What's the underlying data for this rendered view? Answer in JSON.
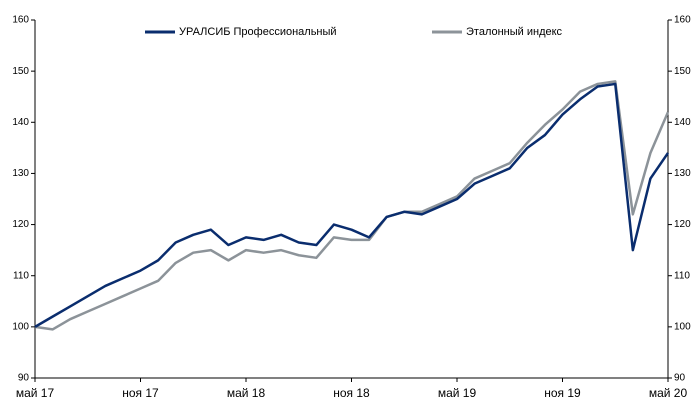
{
  "chart_data": {
    "type": "line",
    "categories": [
      "май 17",
      null,
      null,
      null,
      null,
      null,
      "ноя 17",
      null,
      null,
      null,
      null,
      null,
      "май 18",
      null,
      null,
      null,
      null,
      null,
      "ноя 18",
      null,
      null,
      null,
      null,
      null,
      "май 19",
      null,
      null,
      null,
      null,
      null,
      "ноя 19",
      null,
      null,
      null,
      null,
      null,
      "май 20"
    ],
    "series": [
      {
        "name": "УРАЛСИБ Профессиональный",
        "color": "#0a2d6e",
        "values": [
          100,
          102,
          104,
          106,
          108,
          109.5,
          111,
          113,
          116.5,
          118,
          119,
          116,
          117.5,
          117,
          118,
          116.5,
          116,
          120,
          119,
          117.5,
          121.5,
          122.5,
          122,
          123.5,
          125,
          128,
          129.5,
          131,
          135,
          137.5,
          141.5,
          144.5,
          147,
          147.5,
          115,
          129,
          134
        ]
      },
      {
        "name": "Эталонный индекс",
        "color": "#8c9399",
        "values": [
          100,
          99.5,
          101.5,
          103,
          104.5,
          106,
          107.5,
          109,
          112.5,
          114.5,
          115,
          113,
          115,
          114.5,
          115,
          114,
          113.5,
          117.5,
          117,
          117,
          121.5,
          122.5,
          122.5,
          124,
          125.5,
          129,
          130.5,
          132,
          136,
          139.5,
          142.5,
          146,
          147.5,
          148,
          122,
          134,
          142
        ]
      }
    ],
    "ylim": [
      90,
      160
    ],
    "yticks": [
      90,
      100,
      110,
      120,
      130,
      140,
      150,
      160
    ],
    "y2lim": [
      90,
      160
    ],
    "y2ticks": [
      90,
      100,
      110,
      120,
      130,
      140,
      150,
      160
    ],
    "legend": "top"
  }
}
